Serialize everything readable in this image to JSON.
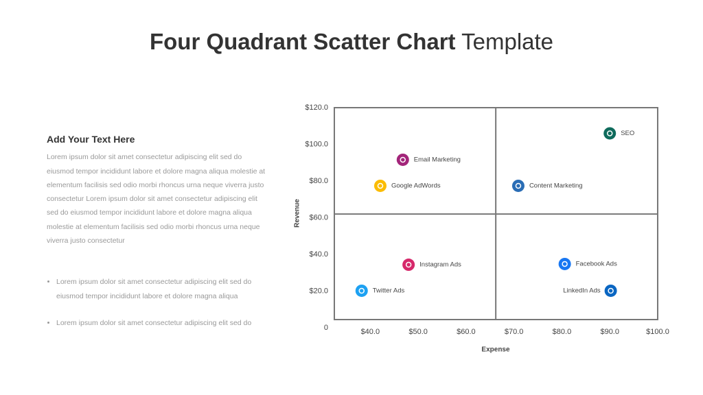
{
  "title_bold": "Four Quadrant Scatter Chart",
  "title_rest": "Template",
  "text_panel": {
    "heading": "Add Your Text Here",
    "paragraph": "Lorem ipsum dolor sit amet consectetur adipiscing elit sed do eiusmod tempor incididunt labore et dolore magna aliqua molestie at elementum facilisis sed odio morbi rhoncus urna neque viverra justo consectetur Lorem ipsum dolor sit amet consectetur adipiscing elit sed do eiusmod tempor incididunt labore et dolore magna aliqua molestie at elementum facilisis sed odio morbi rhoncus urna neque viverra justo consectetur",
    "bullets": [
      "Lorem ipsum dolor sit amet consectetur adipiscing elit sed do eiusmod tempor incididunt labore et dolore magna aliqua",
      "Lorem ipsum dolor sit amet consectetur adipiscing elit sed do"
    ]
  },
  "chart_data": {
    "type": "scatter",
    "x_label": "Expense",
    "y_label": "Revenue",
    "xlim": [
      32.5,
      100
    ],
    "ylim": [
      4.5,
      120
    ],
    "xticks": [
      {
        "value": 40,
        "label": "$40.0"
      },
      {
        "value": 50,
        "label": "$50.0"
      },
      {
        "value": 60,
        "label": "$60.0"
      },
      {
        "value": 70,
        "label": "$70.0"
      },
      {
        "value": 80,
        "label": "$80.0"
      },
      {
        "value": 90,
        "label": "$90.0"
      },
      {
        "value": 100,
        "label": "$100.0"
      }
    ],
    "yticks": [
      0,
      {
        "value": 20,
        "label": "$20.0"
      },
      {
        "value": 40,
        "label": "$40.0"
      },
      {
        "value": 60,
        "label": "$60.0"
      },
      {
        "value": 80,
        "label": "$80.0"
      },
      {
        "value": 100,
        "label": "$100.0"
      },
      {
        "value": 120,
        "label": "$120.0"
      }
    ],
    "quadrant_x": 66.2,
    "quadrant_y": 62,
    "points": [
      {
        "name": "SEO",
        "x": 90.0,
        "y": 106,
        "color": "#0f6b5c"
      },
      {
        "name": "Email Marketing",
        "x": 46.8,
        "y": 91.6,
        "color": "#a3257a"
      },
      {
        "name": "Google AdWords",
        "x": 42.1,
        "y": 77.4,
        "color": "#fbbc04"
      },
      {
        "name": "Content Marketing",
        "x": 70.9,
        "y": 77.4,
        "color": "#2a6db5"
      },
      {
        "name": "Instagram Ads",
        "x": 48.0,
        "y": 34.4,
        "color": "#d6296b"
      },
      {
        "name": "Facebook Ads",
        "x": 80.6,
        "y": 34.8,
        "color": "#1877f2"
      },
      {
        "name": "Twitter Ads",
        "x": 38.2,
        "y": 20.2,
        "color": "#1da1f2"
      },
      {
        "name": "LinkedIn Ads",
        "x": 90.2,
        "y": 20.2,
        "color": "#0a66c2",
        "label_position": "left"
      }
    ]
  }
}
